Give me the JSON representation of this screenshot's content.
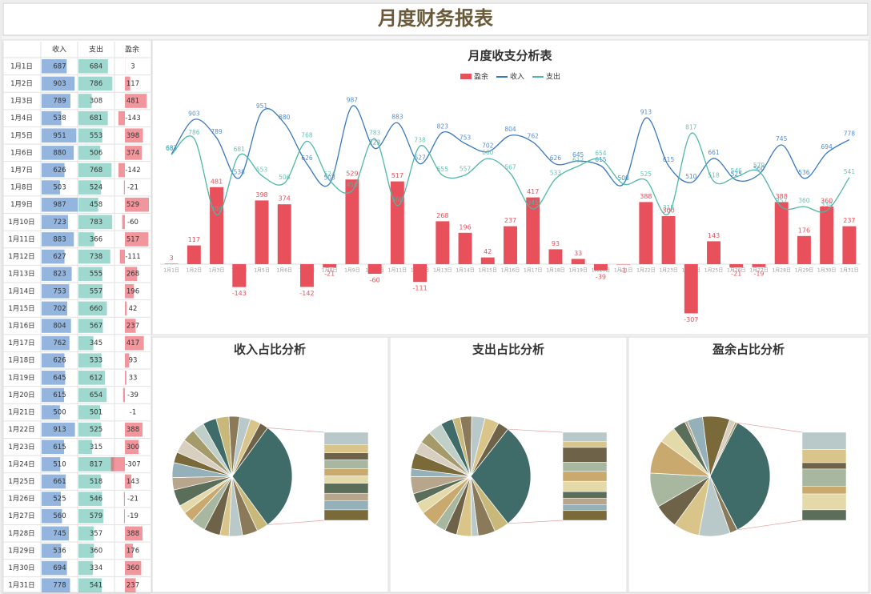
{
  "header": {
    "title": "月度财务报表"
  },
  "chart_data": [
    {
      "type": "combo",
      "title": "月度收支分析表",
      "categories": [
        "1月1日",
        "1月2日",
        "1月3日",
        "1月4日",
        "1月5日",
        "1月6日",
        "1月7日",
        "1月8日",
        "1月9日",
        "1月10日",
        "1月11日",
        "1月12日",
        "1月13日",
        "1月14日",
        "1月15日",
        "1月16日",
        "1月17日",
        "1月18日",
        "1月19日",
        "1月20日",
        "1月21日",
        "1月22日",
        "1月23日",
        "1月24日",
        "1月25日",
        "1月26日",
        "1月27日",
        "1月28日",
        "1月29日",
        "1月30日",
        "1月31日"
      ],
      "series": [
        {
          "name": "盈余",
          "type": "bar",
          "color": "#e8505b",
          "values": [
            3,
            117,
            481,
            -143,
            398,
            374,
            -142,
            -21,
            529,
            -60,
            517,
            -111,
            268,
            196,
            42,
            237,
            417,
            93,
            33,
            -39,
            -1,
            388,
            300,
            -307,
            143,
            -21,
            -19,
            388,
            176,
            360,
            237
          ]
        },
        {
          "name": "收入",
          "type": "line",
          "color": "#3a78c2",
          "values": [
            687,
            903,
            789,
            538,
            951,
            880,
            626,
            503,
            987,
            723,
            883,
            627,
            823,
            753,
            702,
            804,
            762,
            626,
            645,
            615,
            500,
            913,
            615,
            510,
            661,
            525,
            560,
            745,
            536,
            694,
            778
          ]
        },
        {
          "name": "支出",
          "type": "line",
          "color": "#4fb8a8",
          "values": [
            684,
            786,
            308,
            681,
            553,
            506,
            768,
            524,
            458,
            783,
            366,
            738,
            555,
            557,
            660,
            567,
            345,
            533,
            612,
            654,
            501,
            525,
            315,
            817,
            518,
            546,
            579,
            357,
            360,
            334,
            541
          ]
        }
      ],
      "ylim": [
        -400,
        1100
      ],
      "legend": "top"
    },
    {
      "type": "pie",
      "title": "收入占比分析",
      "colors": [
        "#3f6b68",
        "#c8b87a",
        "#8b7a5a",
        "#b9c9c9",
        "#d9c58a",
        "#6e6248",
        "#a8b8a0",
        "#c9a96e",
        "#e4d9a8",
        "#5b6e5a",
        "#b8a68c",
        "#94b0b8",
        "#7a6a3a",
        "#d8cfc0",
        "#a49a6a",
        "#c0d0c8"
      ]
    },
    {
      "type": "pie",
      "title": "支出占比分析",
      "colors": [
        "#3f6b68",
        "#c8b87a",
        "#8b7a5a",
        "#b9c9c9",
        "#d9c58a",
        "#6e6248",
        "#a8b8a0",
        "#c9a96e",
        "#e4d9a8",
        "#5b6e5a",
        "#b8a68c",
        "#94b0b8",
        "#7a6a3a",
        "#d8cfc0",
        "#a49a6a",
        "#c0d0c8"
      ]
    },
    {
      "type": "pie",
      "title": "盈余占比分析",
      "colors": [
        "#3f6b68",
        "#c8b87a",
        "#8b7a5a",
        "#b9c9c9",
        "#d9c58a",
        "#6e6248",
        "#a8b8a0",
        "#c9a96e",
        "#e4d9a8",
        "#5b6e5a",
        "#b8a68c",
        "#94b0b8",
        "#7a6a3a",
        "#d8cfc0",
        "#a49a6a",
        "#c0d0c8"
      ]
    }
  ]
}
